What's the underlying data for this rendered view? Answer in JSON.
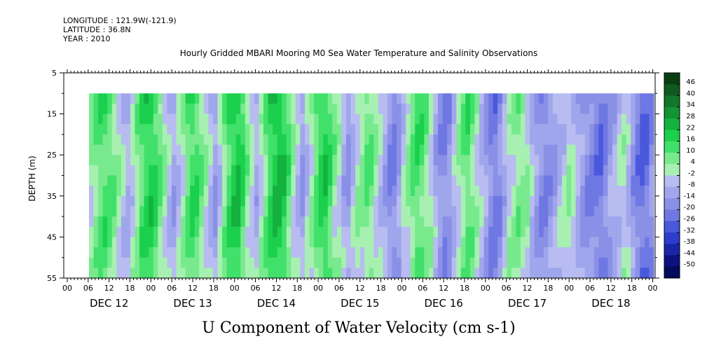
{
  "header": {
    "longitude": "LONGITUDE : 121.9W(-121.9)",
    "latitude": "LATITUDE : 36.8N",
    "year": "YEAR : 2010"
  },
  "chart_data": {
    "type": "heatmap",
    "title": "Hourly Gridded MBARI Mooring M0 Sea Water Temperature and Salinity Observations",
    "xlabel": "U Component of Water Velocity (cm s-1)",
    "ylabel": "DEPTH (m)",
    "ylim": [
      55,
      5
    ],
    "y_ticks": [
      5,
      15,
      25,
      35,
      45,
      55
    ],
    "x_hour_ticks": [
      "00",
      "06",
      "12",
      "18",
      "00",
      "06",
      "12",
      "18",
      "00",
      "06",
      "12",
      "18",
      "00",
      "06",
      "12",
      "18",
      "00",
      "06",
      "12",
      "18",
      "00",
      "06",
      "12",
      "18",
      "00",
      "06",
      "12",
      "18",
      "00"
    ],
    "x_day_labels": [
      "DEC 12",
      "DEC 13",
      "DEC 14",
      "DEC 15",
      "DEC 16",
      "DEC 17",
      "DEC 18"
    ],
    "data_depth_range": [
      10,
      55
    ],
    "data_start_hour": "DEC 12 07",
    "colorbar": {
      "labels": [
        "46",
        "40",
        "34",
        "28",
        "22",
        "16",
        "10",
        "4",
        "-2",
        "-8",
        "-14",
        "-20",
        "-26",
        "-32",
        "-38",
        "-44",
        "-50"
      ],
      "colors": [
        "#0a3d14",
        "#0f5a1e",
        "#11772a",
        "#139434",
        "#14b13f",
        "#1bd04c",
        "#40e06a",
        "#78ea8d",
        "#a8f0b2",
        "#b8bcf0",
        "#a0a6ec",
        "#8a90e6",
        "#6f78e2",
        "#4a58dc",
        "#2e3ccc",
        "#1a26a8",
        "#0c1282",
        "#050a5a"
      ]
    },
    "profile_columns_u": [
      4,
      8,
      12,
      14,
      12,
      8,
      2,
      -6,
      -10,
      -4,
      6,
      14,
      18,
      20,
      16,
      10,
      0,
      -8,
      -12,
      -6,
      4,
      12,
      16,
      14,
      8,
      2,
      -8,
      -14,
      -6,
      8,
      16,
      20,
      22,
      16,
      6,
      -4,
      -10,
      -2,
      10,
      18,
      22,
      24,
      20,
      12,
      2,
      -8,
      -14,
      -6,
      4,
      12,
      18,
      20,
      14,
      6,
      -2,
      -10,
      -14,
      -8,
      0,
      6,
      10,
      8,
      2,
      -6,
      -12,
      -18,
      -20,
      -14,
      -4,
      4,
      10,
      14,
      12,
      6,
      -2,
      -10,
      -16,
      -20,
      -16,
      -8,
      2,
      8,
      12,
      8,
      2,
      -8,
      -14,
      -20,
      -22,
      -18,
      -10,
      -2,
      4,
      8,
      6,
      0,
      -8,
      -14,
      -18,
      -20,
      -16,
      -12,
      -8,
      -4,
      0,
      -4,
      -10,
      -14,
      -18,
      -20,
      -22,
      -24,
      -20,
      -14,
      -10,
      -6,
      -2,
      -8,
      -16,
      -22,
      -26,
      -24,
      -18
    ]
  }
}
